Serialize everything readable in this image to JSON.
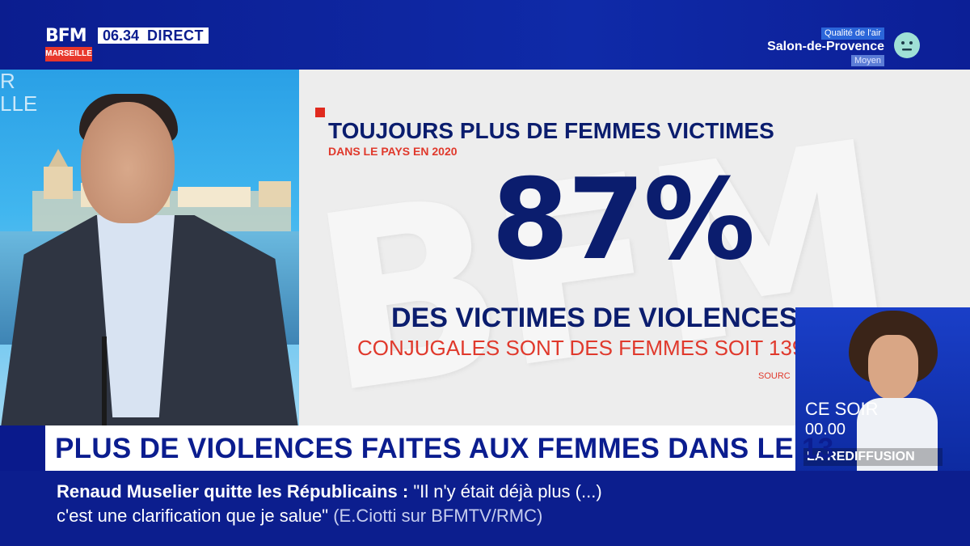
{
  "channel": {
    "logo": "BFM",
    "city": "MARSEILLE",
    "time": "06.34",
    "status": "DIRECT"
  },
  "air_quality": {
    "label": "Qualité de l'air",
    "city": "Salon-de-Provence",
    "level": "Moyen",
    "icon": "neutral-face-icon"
  },
  "studio": {
    "bg_text_1": "R",
    "bg_text_2": "LLE"
  },
  "graphic": {
    "heading": "TOUJOURS PLUS DE FEMMES VICTIMES",
    "subheading": "DANS LE PAYS EN 2020",
    "big_number": "87%",
    "line1": "DES VICTIMES DE VIOLENCES",
    "line2": "CONJUGALES SONT DES FEMMES SOIT 139",
    "source": "SOURC",
    "watermark": "BFM"
  },
  "promo": {
    "line1": "CE SOIR",
    "time": "00.00",
    "label": "LA REDIFFUSION"
  },
  "headline": "PLUS DE VIOLENCES FAITES AUX FEMMES DANS LE 13",
  "ticker": {
    "topic": "Renaud Muselier quitte les Républicains",
    "sep": " : ",
    "quote_1": "\"Il n'y était déjà plus (...)",
    "quote_2": "c'est une clarification que je salue\"",
    "source": "(E.Ciotti sur BFMTV/RMC)"
  },
  "colors": {
    "brand_blue": "#0b1d8f",
    "accent_red": "#e02a1e",
    "navy_text": "#0b1d6e"
  }
}
